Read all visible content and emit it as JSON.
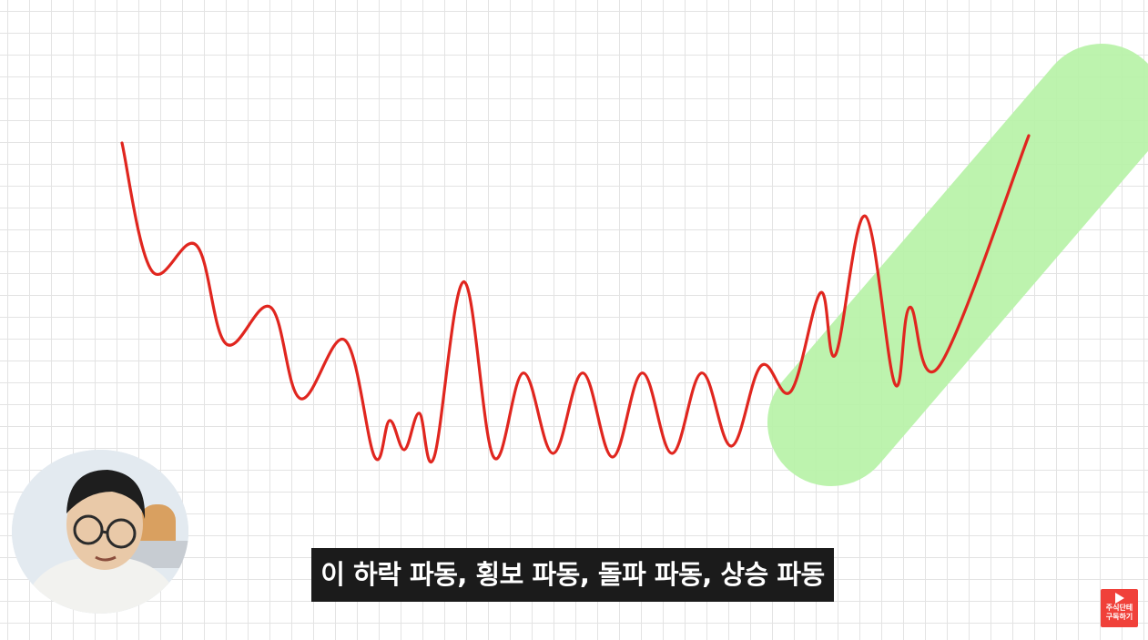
{
  "subtitle": "이 하락 파동, 횡보 파동, 돌파 파동, 상승 파동",
  "channel_badge": {
    "icon": "play-icon",
    "line1": "주식단테",
    "line2": "구독하기",
    "color": "#f0413a"
  },
  "colors": {
    "line": "#e0261f",
    "highlight": "#b8f3a8",
    "grid": "#e3e3e3",
    "subtitle_bg": "#1b1b1b"
  },
  "chart_data": {
    "type": "line",
    "title": "",
    "xlabel": "",
    "ylabel": "",
    "grid": true,
    "phases": [
      "하락 파동",
      "횡보 파동",
      "돌파 파동",
      "상승 파동"
    ],
    "highlight": {
      "from_x": 47,
      "to_x": 61,
      "label": ""
    },
    "series": [
      {
        "x": [
          0,
          2,
          5,
          7,
          10,
          12,
          15,
          17,
          18,
          19,
          20,
          21,
          23,
          25,
          27,
          29,
          31,
          33,
          35,
          37,
          39,
          41,
          43,
          45,
          47,
          48,
          50,
          52,
          53,
          55,
          61
        ],
        "y": [
          96,
          61,
          68,
          41,
          51,
          26,
          42,
          10,
          20,
          12,
          22,
          10,
          58,
          10,
          33,
          11,
          33,
          10,
          33,
          11,
          33,
          13,
          35,
          28,
          55,
          38,
          76,
          30,
          51,
          35,
          98
        ]
      }
    ]
  }
}
